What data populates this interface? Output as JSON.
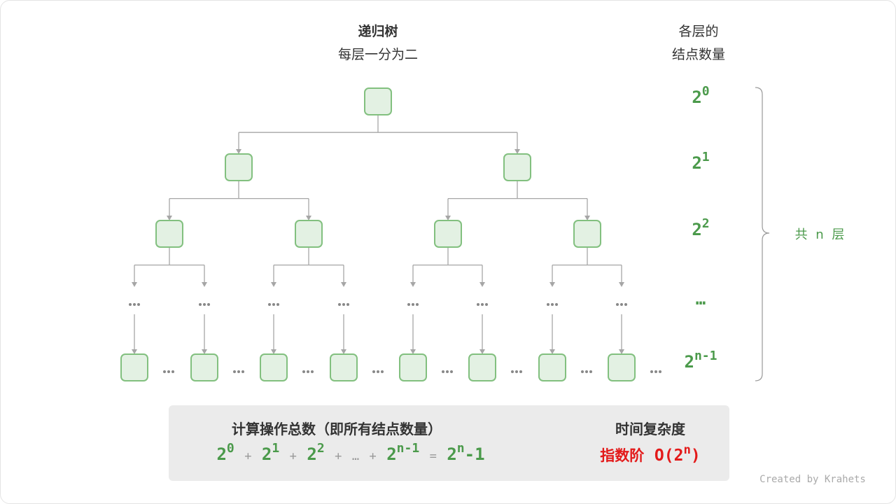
{
  "header": {
    "title": "递归树",
    "subtitle": "每层一分为二"
  },
  "right_header": {
    "line1": "各层的",
    "line2": "结点数量"
  },
  "levels": [
    {
      "base": "2",
      "exp": "0"
    },
    {
      "base": "2",
      "exp": "1"
    },
    {
      "base": "2",
      "exp": "2"
    },
    {
      "base": "…",
      "exp": ""
    },
    {
      "base": "2",
      "exp": "n-1"
    }
  ],
  "brace_label": "共 n 层",
  "summary": {
    "title": "计算操作总数（即所有结点数量）",
    "terms": [
      {
        "base": "2",
        "exp": "0"
      },
      {
        "base": "2",
        "exp": "1"
      },
      {
        "base": "2",
        "exp": "2"
      },
      {
        "base": "…",
        "exp": ""
      },
      {
        "base": "2",
        "exp": "n-1"
      }
    ],
    "plus": "+",
    "equals": "=",
    "result": {
      "base": "2",
      "exp": "n",
      "tail": "-1"
    },
    "complexity_title": "时间复杂度",
    "complexity_name": "指数阶",
    "complexity_expr_pre": "O(2",
    "complexity_expr_exp": "n",
    "complexity_expr_post": ")"
  },
  "credit": "Created by Krahets",
  "colors": {
    "node_fill": "#e3f1e3",
    "node_stroke": "#82c07f",
    "edge": "#a6a6a6",
    "green_text": "#4b9a4b",
    "red_text": "#e31a1a",
    "panel": "#ebebeb"
  }
}
